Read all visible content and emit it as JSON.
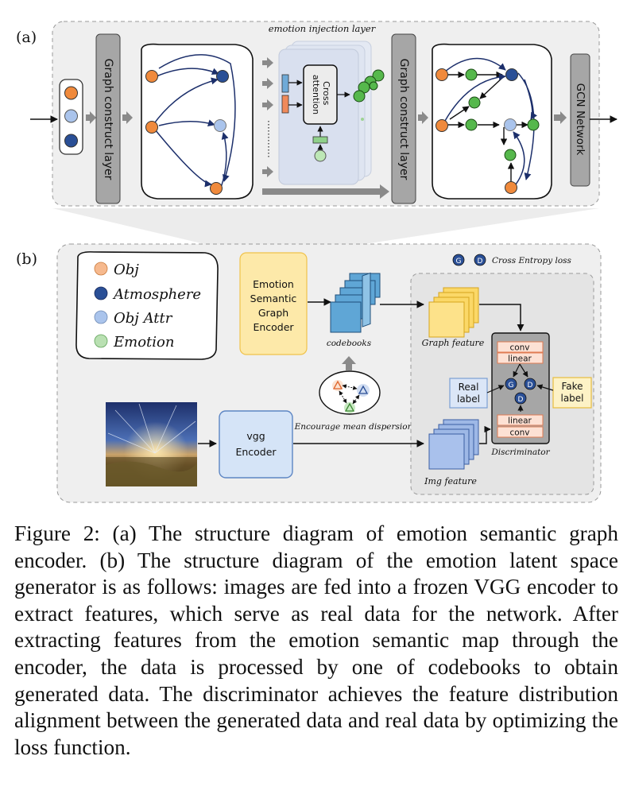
{
  "panel_a": {
    "tag": "(a)",
    "graph_construct_1": "Graph construct layer",
    "emotion_injection_title": "emotion injection layer",
    "cross_attention": [
      "Cross",
      "attention"
    ],
    "graph_construct_2": "Graph construct layer",
    "gcn_network": "GCN Network"
  },
  "panel_b": {
    "tag": "(b)",
    "legend": {
      "obj": "Obj",
      "atmosphere": "Atmosphere",
      "obj_attr": "Obj Attr",
      "emotion": "Emotion"
    },
    "encoder_lines": [
      "Emotion",
      "Semantic",
      "Graph",
      "Encoder"
    ],
    "codebooks": "codebooks",
    "encourage": "Encourage mean dispersion",
    "cross_entropy": "Cross Entropy loss",
    "graph_feature": "Graph feature",
    "img_feature": "Img feature",
    "real_label": [
      "Real",
      "label"
    ],
    "fake_label": [
      "Fake",
      "label"
    ],
    "vgg_lines": [
      "vgg",
      "Encoder"
    ],
    "disc": {
      "conv_top": "conv",
      "linear_top": "linear",
      "linear_bottom": "linear",
      "conv_bottom": "conv",
      "label": "Discriminator"
    },
    "g_badge": "G",
    "d_badge": "D"
  },
  "colors": {
    "obj": "#f08a3c",
    "atmosphere": "#2a4f96",
    "obj_attr": "#aac4ec",
    "emotion": "#56b84c",
    "encoder_fill": "#fde9a9",
    "feature_fill": "#fbd867",
    "codebook_fill": "#5fa6d6",
    "vgg_fill": "#d5e4f7"
  },
  "caption": "Figure 2: (a) The structure diagram of emotion semantic graph encoder. (b) The structure diagram of the emotion latent space generator is as follows: images are fed into a frozen VGG encoder to extract features, which serve as real data for the network. After extracting features from the emotion semantic map through the encoder, the data is processed by one of codebooks to obtain generated data. The discriminator achieves the feature distribution alignment between the generated data and real data by optimizing the loss function."
}
